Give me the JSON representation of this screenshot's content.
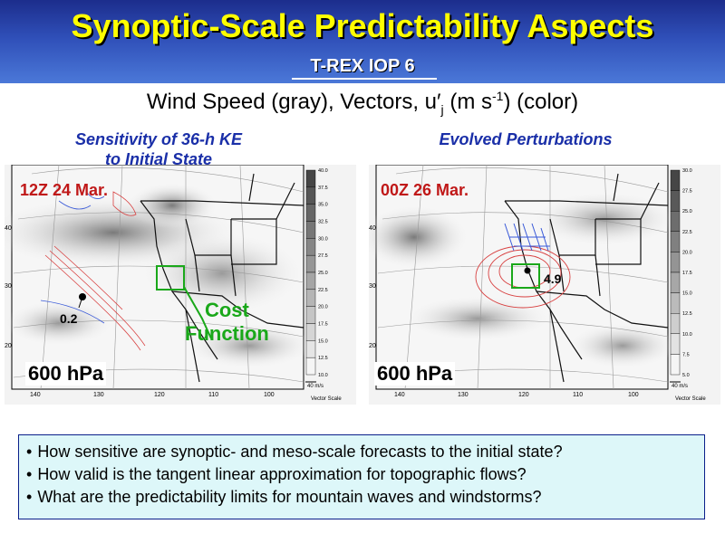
{
  "header": {
    "title": "Synoptic-Scale Predictability Aspects",
    "subtitle": "T-REX IOP 6"
  },
  "heading": {
    "text_before": "Wind Speed (gray), Vectors, u",
    "prime": "′",
    "sub": "j",
    "text_mid": " (m s",
    "sup": "-1",
    "text_after": ") (color)"
  },
  "left_panel": {
    "title_line1": "Sensitivity of 36-h KE",
    "title_line2": "to Initial State",
    "time": "12Z 24 Mar.",
    "level": "600 hPa",
    "value_label": "0.2",
    "cost_line1": "Cost",
    "cost_line2": "Function",
    "lat_labels": [
      "40",
      "30",
      "20"
    ],
    "lon_labels": [
      "140",
      "130",
      "120",
      "110",
      "100"
    ],
    "scale_labels": [
      "40.0",
      "37.5",
      "35.0",
      "32.5",
      "30.0",
      "27.5",
      "25.0",
      "22.5",
      "20.0",
      "17.5",
      "15.0",
      "12.5",
      "10.0"
    ],
    "vector_scale": "Vector Scale",
    "vector_ref": "40 m/s"
  },
  "right_panel": {
    "title": "Evolved Perturbations",
    "time": "00Z 26 Mar.",
    "level": "600 hPa",
    "value_label": "4.9",
    "lat_labels": [
      "40",
      "30",
      "20"
    ],
    "lon_labels": [
      "140",
      "130",
      "120",
      "110",
      "100"
    ],
    "scale_labels": [
      "30.0",
      "27.5",
      "25.0",
      "22.5",
      "20.0",
      "17.5",
      "15.0",
      "12.5",
      "10.0",
      "7.5",
      "5.0"
    ],
    "vector_scale": "Vector Scale",
    "vector_ref": "40 m/s"
  },
  "questions": [
    "How sensitive are synoptic- and meso-scale forecasts to the initial state?",
    "How valid is the tangent linear approximation for topographic flows?",
    "What are the predictability limits for mountain waves and windstorms?"
  ],
  "colors": {
    "header_top": "#1c2d8c",
    "header_bottom": "#4b78d8",
    "title": "#ffff00",
    "panel_title": "#1a2fa8",
    "time_label": "#c01818",
    "cost_function": "#1aa81a",
    "questions_bg": "#ddf7f9"
  }
}
